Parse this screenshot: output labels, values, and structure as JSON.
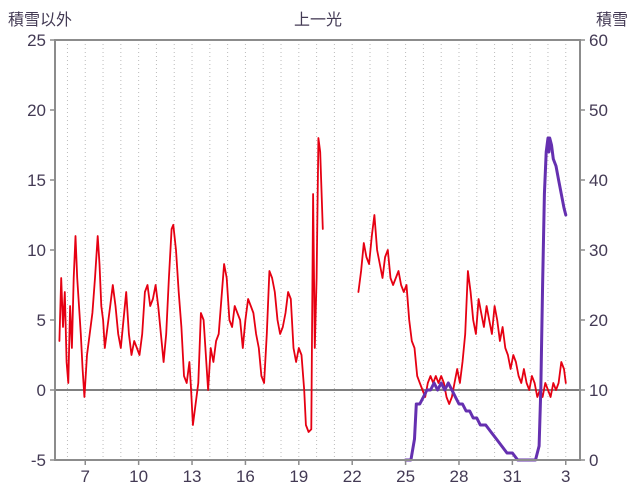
{
  "header": {
    "title": "上一光",
    "left_axis_label": "積雪以外",
    "right_axis_label": "積雪"
  },
  "colors": {
    "text": "#433a54",
    "border": "#8c8c8c",
    "grid": "#bbbbbb",
    "zero_line": "#808080",
    "series_red": "#e60012",
    "series_purple": "#6530b0"
  },
  "chart_data": {
    "type": "line",
    "title": "上一光",
    "xlim": [
      5.3,
      34.8
    ],
    "x_ticks": [
      {
        "v": 7,
        "label": "7"
      },
      {
        "v": 10,
        "label": "10"
      },
      {
        "v": 13,
        "label": "13"
      },
      {
        "v": 16,
        "label": "16"
      },
      {
        "v": 19,
        "label": "19"
      },
      {
        "v": 22,
        "label": "22"
      },
      {
        "v": 25,
        "label": "25"
      },
      {
        "v": 28,
        "label": "28"
      },
      {
        "v": 31,
        "label": "31"
      },
      {
        "v": 34,
        "label": "3"
      }
    ],
    "grid_daily_dotted": true,
    "zero_line_left_axis": true,
    "left_axis": {
      "label": "積雪以外",
      "lim": [
        -5,
        25
      ],
      "ticks": [
        -5,
        0,
        5,
        10,
        15,
        20,
        25
      ]
    },
    "right_axis": {
      "label": "積雪",
      "lim": [
        0,
        60
      ],
      "ticks": [
        0,
        10,
        20,
        30,
        40,
        50,
        60
      ]
    },
    "series": [
      {
        "name": "積雪以外",
        "axis": "left",
        "color_key": "series_red",
        "width": 1.8,
        "points": [
          [
            5.55,
            3.5
          ],
          [
            5.65,
            8
          ],
          [
            5.75,
            4.5
          ],
          [
            5.85,
            7
          ],
          [
            5.95,
            2
          ],
          [
            6.05,
            0.5
          ],
          [
            6.15,
            6
          ],
          [
            6.25,
            3
          ],
          [
            6.35,
            8
          ],
          [
            6.45,
            11
          ],
          [
            6.55,
            8
          ],
          [
            6.65,
            6
          ],
          [
            6.75,
            4
          ],
          [
            6.85,
            1.5
          ],
          [
            6.95,
            -0.5
          ],
          [
            7.1,
            2.5
          ],
          [
            7.25,
            4
          ],
          [
            7.4,
            5.5
          ],
          [
            7.55,
            8
          ],
          [
            7.7,
            11
          ],
          [
            7.8,
            9
          ],
          [
            7.9,
            6
          ],
          [
            8.0,
            5
          ],
          [
            8.1,
            3
          ],
          [
            8.25,
            4.5
          ],
          [
            8.4,
            6
          ],
          [
            8.55,
            7.5
          ],
          [
            8.7,
            6
          ],
          [
            8.85,
            4
          ],
          [
            9.0,
            3
          ],
          [
            9.15,
            5
          ],
          [
            9.3,
            7
          ],
          [
            9.45,
            4
          ],
          [
            9.6,
            2.5
          ],
          [
            9.75,
            3.5
          ],
          [
            9.9,
            3
          ],
          [
            10.05,
            2.5
          ],
          [
            10.2,
            4
          ],
          [
            10.35,
            7
          ],
          [
            10.5,
            7.5
          ],
          [
            10.65,
            6
          ],
          [
            10.8,
            6.5
          ],
          [
            10.95,
            7.5
          ],
          [
            11.1,
            6
          ],
          [
            11.25,
            4
          ],
          [
            11.4,
            2
          ],
          [
            11.55,
            4
          ],
          [
            11.7,
            8
          ],
          [
            11.85,
            11.5
          ],
          [
            11.95,
            11.8
          ],
          [
            12.1,
            10
          ],
          [
            12.25,
            7
          ],
          [
            12.4,
            4.5
          ],
          [
            12.55,
            1
          ],
          [
            12.7,
            0.5
          ],
          [
            12.85,
            2
          ],
          [
            12.95,
            0
          ],
          [
            13.05,
            -2.5
          ],
          [
            13.2,
            -1
          ],
          [
            13.35,
            0.5
          ],
          [
            13.5,
            5.5
          ],
          [
            13.65,
            5
          ],
          [
            13.8,
            2
          ],
          [
            13.9,
            0
          ],
          [
            14.05,
            3
          ],
          [
            14.2,
            2
          ],
          [
            14.35,
            3.5
          ],
          [
            14.5,
            4
          ],
          [
            14.65,
            6.5
          ],
          [
            14.8,
            9
          ],
          [
            14.95,
            8
          ],
          [
            15.1,
            5
          ],
          [
            15.25,
            4.5
          ],
          [
            15.4,
            6
          ],
          [
            15.55,
            5.5
          ],
          [
            15.7,
            5
          ],
          [
            15.85,
            3
          ],
          [
            16.0,
            5
          ],
          [
            16.15,
            6.5
          ],
          [
            16.3,
            6
          ],
          [
            16.45,
            5.5
          ],
          [
            16.6,
            4
          ],
          [
            16.75,
            3
          ],
          [
            16.9,
            1
          ],
          [
            17.05,
            0.5
          ],
          [
            17.2,
            4
          ],
          [
            17.35,
            8.5
          ],
          [
            17.5,
            8
          ],
          [
            17.65,
            7
          ],
          [
            17.8,
            5
          ],
          [
            17.95,
            4
          ],
          [
            18.1,
            4.5
          ],
          [
            18.25,
            5.5
          ],
          [
            18.4,
            7
          ],
          [
            18.55,
            6.5
          ],
          [
            18.7,
            3
          ],
          [
            18.85,
            2
          ],
          [
            19.0,
            3
          ],
          [
            19.15,
            2.5
          ],
          [
            19.3,
            0
          ],
          [
            19.4,
            -2.5
          ],
          [
            19.55,
            -3
          ],
          [
            19.7,
            -2.8
          ],
          [
            19.8,
            14
          ],
          [
            19.9,
            3
          ],
          [
            20.0,
            8
          ],
          [
            20.1,
            18
          ],
          [
            20.2,
            17
          ],
          [
            20.35,
            11.5
          ],
          null,
          [
            22.35,
            7
          ],
          [
            22.5,
            8.5
          ],
          [
            22.65,
            10.5
          ],
          [
            22.8,
            9.5
          ],
          [
            22.95,
            9
          ],
          [
            23.1,
            11
          ],
          [
            23.25,
            12.5
          ],
          [
            23.4,
            10
          ],
          [
            23.55,
            9
          ],
          [
            23.7,
            8
          ],
          [
            23.85,
            9.5
          ],
          [
            24.0,
            10
          ],
          [
            24.15,
            8
          ],
          [
            24.3,
            7.5
          ],
          [
            24.45,
            8
          ],
          [
            24.6,
            8.5
          ],
          [
            24.75,
            7.5
          ],
          [
            24.9,
            7
          ],
          [
            25.05,
            7.5
          ],
          [
            25.2,
            5
          ],
          [
            25.35,
            3.5
          ],
          [
            25.5,
            3
          ],
          [
            25.65,
            1
          ],
          [
            25.8,
            0.5
          ],
          [
            25.95,
            0
          ],
          [
            26.1,
            -0.5
          ],
          [
            26.25,
            0.5
          ],
          [
            26.4,
            1
          ],
          [
            26.55,
            0.5
          ],
          [
            26.7,
            1
          ],
          [
            26.85,
            0.5
          ],
          [
            27.0,
            1
          ],
          [
            27.15,
            0.5
          ],
          [
            27.3,
            -0.5
          ],
          [
            27.45,
            -1
          ],
          [
            27.6,
            -0.5
          ],
          [
            27.75,
            0.5
          ],
          [
            27.9,
            1.5
          ],
          [
            28.05,
            0.5
          ],
          [
            28.2,
            2
          ],
          [
            28.35,
            4
          ],
          [
            28.5,
            8.5
          ],
          [
            28.65,
            7
          ],
          [
            28.8,
            5
          ],
          [
            28.95,
            4
          ],
          [
            29.1,
            6.5
          ],
          [
            29.25,
            5.5
          ],
          [
            29.4,
            4.5
          ],
          [
            29.55,
            6
          ],
          [
            29.7,
            5
          ],
          [
            29.85,
            4
          ],
          [
            30.0,
            6
          ],
          [
            30.15,
            5
          ],
          [
            30.3,
            3.5
          ],
          [
            30.45,
            4.5
          ],
          [
            30.6,
            3
          ],
          [
            30.75,
            2.5
          ],
          [
            30.9,
            1.5
          ],
          [
            31.05,
            2.5
          ],
          [
            31.2,
            2
          ],
          [
            31.35,
            1
          ],
          [
            31.5,
            0.5
          ],
          [
            31.65,
            1.5
          ],
          [
            31.8,
            0.5
          ],
          [
            31.95,
            0
          ],
          [
            32.1,
            1
          ],
          [
            32.25,
            0.5
          ],
          [
            32.4,
            -0.5
          ],
          [
            32.55,
            0
          ],
          [
            32.7,
            -0.5
          ],
          [
            32.85,
            0.5
          ],
          [
            33.0,
            0
          ],
          [
            33.15,
            -0.5
          ],
          [
            33.3,
            0.5
          ],
          [
            33.45,
            0
          ],
          [
            33.6,
            0.5
          ],
          [
            33.75,
            2
          ],
          [
            33.9,
            1.5
          ],
          [
            34.0,
            0.5
          ]
        ]
      },
      {
        "name": "積雪",
        "axis": "right",
        "color_key": "series_purple",
        "width": 3,
        "points": [
          [
            25.0,
            0
          ],
          [
            25.3,
            0
          ],
          [
            25.5,
            3
          ],
          [
            25.6,
            8
          ],
          [
            25.8,
            8
          ],
          [
            26.0,
            9
          ],
          [
            26.2,
            10
          ],
          [
            26.4,
            10
          ],
          [
            26.6,
            11
          ],
          [
            26.8,
            10
          ],
          [
            27.0,
            11
          ],
          [
            27.2,
            10
          ],
          [
            27.4,
            11
          ],
          [
            27.6,
            10
          ],
          [
            27.8,
            9
          ],
          [
            28.0,
            8
          ],
          [
            28.2,
            8
          ],
          [
            28.4,
            7
          ],
          [
            28.6,
            7
          ],
          [
            28.8,
            6
          ],
          [
            29.0,
            6
          ],
          [
            29.2,
            5
          ],
          [
            29.5,
            5
          ],
          [
            29.8,
            4
          ],
          [
            30.1,
            3
          ],
          [
            30.4,
            2
          ],
          [
            30.7,
            1
          ],
          [
            31.0,
            1
          ],
          [
            31.3,
            0
          ],
          [
            32.3,
            0
          ],
          [
            32.5,
            2
          ],
          [
            32.6,
            10
          ],
          [
            32.7,
            25
          ],
          [
            32.8,
            38
          ],
          [
            32.9,
            44
          ],
          [
            33.0,
            46
          ],
          [
            33.05,
            44
          ],
          [
            33.1,
            46
          ],
          [
            33.2,
            45
          ],
          [
            33.3,
            43
          ],
          [
            33.45,
            42
          ],
          [
            33.6,
            40
          ],
          [
            33.75,
            38
          ],
          [
            33.9,
            36
          ],
          [
            34.0,
            35
          ]
        ]
      }
    ]
  }
}
